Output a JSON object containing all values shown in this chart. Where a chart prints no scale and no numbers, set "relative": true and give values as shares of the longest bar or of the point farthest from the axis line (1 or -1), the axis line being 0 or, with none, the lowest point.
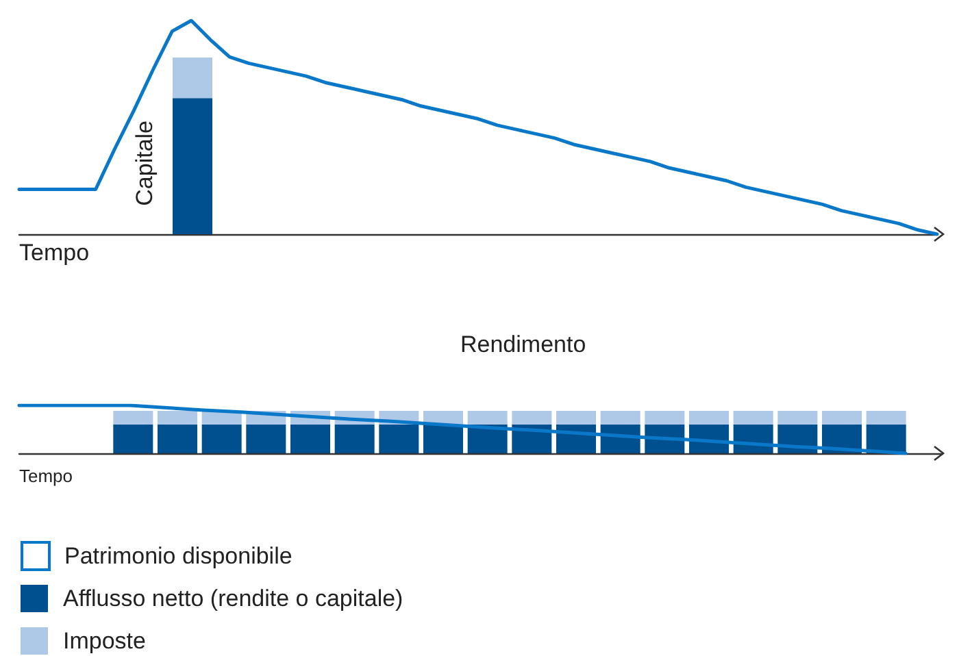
{
  "chart_data": [
    {
      "type": "line",
      "relative": true,
      "xlabel": "Tempo",
      "legend": false,
      "grid": false,
      "categories": [
        null,
        null,
        null,
        null,
        null,
        null,
        null,
        null,
        null,
        null,
        null,
        null,
        null,
        null,
        null,
        null,
        null,
        null,
        null,
        null,
        null,
        null,
        null,
        null,
        null,
        null,
        null,
        null,
        null,
        null,
        null,
        null,
        null,
        null,
        null,
        null,
        null,
        null,
        null,
        null,
        null,
        null,
        null,
        null,
        null,
        null,
        null,
        null,
        null
      ],
      "series": [
        {
          "color": "#0a78c8",
          "values": [
            0.21,
            0.21,
            0.21,
            0.21,
            0.21,
            0.4,
            0.58,
            0.77,
            0.95,
            1.0,
            0.91,
            0.83,
            0.8,
            0.78,
            0.76,
            0.74,
            0.71,
            0.69,
            0.67,
            0.65,
            0.63,
            0.6,
            0.58,
            0.56,
            0.54,
            0.51,
            0.49,
            0.47,
            0.45,
            0.42,
            0.4,
            0.38,
            0.36,
            0.34,
            0.31,
            0.29,
            0.27,
            0.25,
            0.22,
            0.2,
            0.18,
            0.16,
            0.14,
            0.11,
            0.09,
            0.07,
            0.05,
            0.02,
            0
          ]
        }
      ]
    },
    {
      "type": "bar",
      "relative": true,
      "stacked": true,
      "annotations": [
        "Capitale"
      ],
      "legend": false,
      "grid": false,
      "categories": [
        null
      ],
      "series": [
        {
          "color": "#004f8f",
          "values": [
            0.77
          ]
        },
        {
          "color": "#aec8e8",
          "values": [
            0.23
          ]
        }
      ]
    },
    {
      "type": "line",
      "relative": true,
      "xlabel": "Tempo",
      "annotations": [
        "Rendimento"
      ],
      "legend": "bottom left",
      "grid": false,
      "categories": [
        null,
        null,
        null,
        null,
        null,
        null,
        null,
        null,
        null,
        null,
        null,
        null,
        null,
        null,
        null,
        null,
        null,
        null,
        null,
        null,
        null,
        null,
        null,
        null,
        null,
        null
      ],
      "series": [
        {
          "name": "Patrimonio disponibile",
          "color": "#0a78c8",
          "values": [
            1,
            1,
            1,
            1,
            0.95,
            0.9,
            0.86,
            0.81,
            0.76,
            0.71,
            0.67,
            0.62,
            0.57,
            0.52,
            0.48,
            0.43,
            0.38,
            0.33,
            0.29,
            0.24,
            0.19,
            0.14,
            0.1,
            0.05,
            0,
            null
          ]
        }
      ]
    },
    {
      "type": "bar",
      "relative": true,
      "stacked": true,
      "legend": "bottom left",
      "grid": false,
      "categories": [
        null,
        null,
        null,
        null,
        null,
        null,
        null,
        null,
        null,
        null,
        null,
        null,
        null,
        null,
        null,
        null,
        null,
        null
      ],
      "series": [
        {
          "name": "Afflusso netto (rendite o capitale)",
          "color": "#004f8f",
          "values": [
            0.68,
            0.68,
            0.68,
            0.68,
            0.68,
            0.68,
            0.68,
            0.68,
            0.68,
            0.68,
            0.68,
            0.68,
            0.68,
            0.68,
            0.68,
            0.68,
            0.68,
            0.68
          ]
        },
        {
          "name": "Imposte",
          "color": "#aec8e8",
          "values": [
            0.32,
            0.32,
            0.32,
            0.32,
            0.32,
            0.32,
            0.32,
            0.32,
            0.32,
            0.32,
            0.32,
            0.32,
            0.32,
            0.32,
            0.32,
            0.32,
            0.32,
            0.32
          ]
        }
      ]
    }
  ]
}
